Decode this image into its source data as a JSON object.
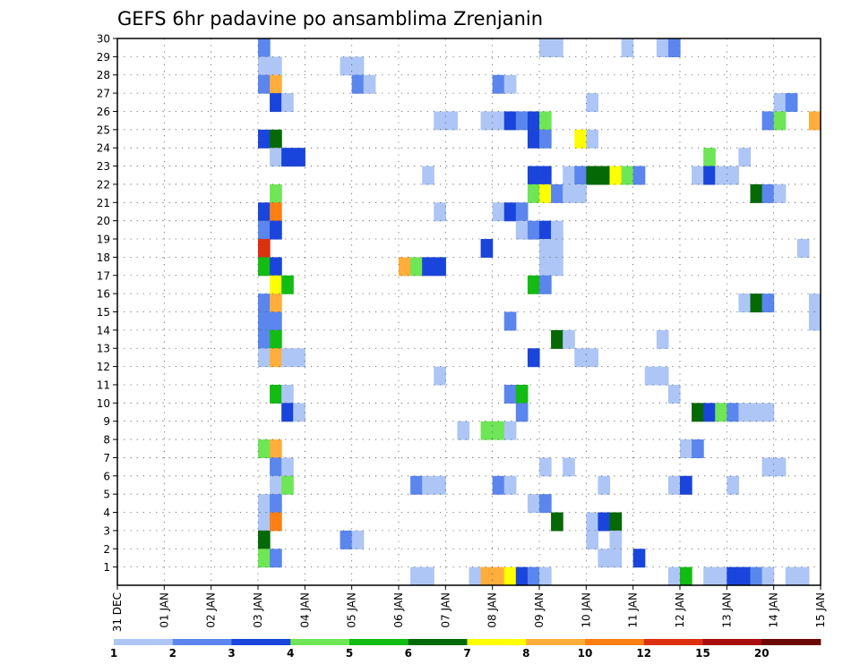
{
  "chart_data": {
    "type": "heatmap",
    "title": "GEFS 6hr padavine po ansamblima Zrenjanin",
    "xlabel": "",
    "ylabel": "",
    "x_ticks": [
      "31 DEC",
      "01 JAN",
      "02 JAN",
      "03 JAN",
      "04 JAN",
      "05 JAN",
      "06 JAN",
      "07 JAN",
      "08 JAN",
      "09 JAN",
      "10 JAN",
      "11 JAN",
      "12 JAN",
      "13 JAN",
      "14 JAN",
      "15 JAN"
    ],
    "x_unit": "days since 31 DEC, 6-hourly steps (0.25)",
    "xlim": [
      0,
      15
    ],
    "y_ticks": [
      1,
      2,
      3,
      4,
      5,
      6,
      7,
      8,
      9,
      10,
      11,
      12,
      13,
      14,
      15,
      16,
      17,
      18,
      19,
      20,
      21,
      22,
      23,
      24,
      25,
      26,
      27,
      28,
      29,
      30
    ],
    "ylim": [
      0,
      30
    ],
    "grid": true,
    "colorbar": {
      "labels": [
        "1",
        "2",
        "3",
        "4",
        "5",
        "6",
        "7",
        "8",
        "10",
        "12",
        "15",
        "20"
      ],
      "colors": [
        "#aec6f5",
        "#5a86ee",
        "#1a45dc",
        "#6ee656",
        "#12bc12",
        "#056905",
        "#ffff00",
        "#ffae3b",
        "#ff7f14",
        "#dd3010",
        "#a80c0c",
        "#6b0808"
      ]
    },
    "cells": [
      {
        "x": 3.0,
        "y": 30,
        "c": 1
      },
      {
        "x": 9.0,
        "y": 30,
        "c": 0
      },
      {
        "x": 9.25,
        "y": 30,
        "c": 0
      },
      {
        "x": 10.75,
        "y": 30,
        "c": 0
      },
      {
        "x": 11.5,
        "y": 30,
        "c": 0
      },
      {
        "x": 11.75,
        "y": 30,
        "c": 1
      },
      {
        "x": 3.0,
        "y": 29,
        "c": 0
      },
      {
        "x": 3.25,
        "y": 29,
        "c": 0
      },
      {
        "x": 4.75,
        "y": 29,
        "c": 0
      },
      {
        "x": 5.0,
        "y": 29,
        "c": 0
      },
      {
        "x": 3.0,
        "y": 28,
        "c": 1
      },
      {
        "x": 3.25,
        "y": 28,
        "c": 7
      },
      {
        "x": 5.0,
        "y": 28,
        "c": 1
      },
      {
        "x": 5.25,
        "y": 28,
        "c": 0
      },
      {
        "x": 8.0,
        "y": 28,
        "c": 1
      },
      {
        "x": 8.25,
        "y": 28,
        "c": 0
      },
      {
        "x": 3.25,
        "y": 27,
        "c": 2
      },
      {
        "x": 3.5,
        "y": 27,
        "c": 0
      },
      {
        "x": 10.0,
        "y": 27,
        "c": 0
      },
      {
        "x": 14.0,
        "y": 27,
        "c": 0
      },
      {
        "x": 14.25,
        "y": 27,
        "c": 1
      },
      {
        "x": 6.75,
        "y": 26,
        "c": 0
      },
      {
        "x": 7.0,
        "y": 26,
        "c": 0
      },
      {
        "x": 7.75,
        "y": 26,
        "c": 0
      },
      {
        "x": 8.0,
        "y": 26,
        "c": 0
      },
      {
        "x": 8.25,
        "y": 26,
        "c": 2
      },
      {
        "x": 8.5,
        "y": 26,
        "c": 1
      },
      {
        "x": 8.75,
        "y": 26,
        "c": 2
      },
      {
        "x": 9.0,
        "y": 26,
        "c": 3
      },
      {
        "x": 13.75,
        "y": 26,
        "c": 1
      },
      {
        "x": 14.0,
        "y": 26,
        "c": 3
      },
      {
        "x": 14.75,
        "y": 26,
        "c": 7
      },
      {
        "x": 3.0,
        "y": 25,
        "c": 2
      },
      {
        "x": 3.25,
        "y": 25,
        "c": 5
      },
      {
        "x": 8.75,
        "y": 25,
        "c": 2
      },
      {
        "x": 9.0,
        "y": 25,
        "c": 1
      },
      {
        "x": 9.75,
        "y": 25,
        "c": 6
      },
      {
        "x": 10.0,
        "y": 25,
        "c": 0
      },
      {
        "x": 3.25,
        "y": 24,
        "c": 0
      },
      {
        "x": 3.5,
        "y": 24,
        "c": 2
      },
      {
        "x": 3.75,
        "y": 24,
        "c": 2
      },
      {
        "x": 12.5,
        "y": 24,
        "c": 3
      },
      {
        "x": 13.25,
        "y": 24,
        "c": 0
      },
      {
        "x": 6.5,
        "y": 23,
        "c": 0
      },
      {
        "x": 8.75,
        "y": 23,
        "c": 2
      },
      {
        "x": 9.0,
        "y": 23,
        "c": 2
      },
      {
        "x": 9.5,
        "y": 23,
        "c": 0
      },
      {
        "x": 9.75,
        "y": 23,
        "c": 1
      },
      {
        "x": 10.0,
        "y": 23,
        "c": 5
      },
      {
        "x": 10.25,
        "y": 23,
        "c": 5
      },
      {
        "x": 10.5,
        "y": 23,
        "c": 6
      },
      {
        "x": 10.75,
        "y": 23,
        "c": 3
      },
      {
        "x": 11.0,
        "y": 23,
        "c": 1
      },
      {
        "x": 12.25,
        "y": 23,
        "c": 0
      },
      {
        "x": 12.5,
        "y": 23,
        "c": 2
      },
      {
        "x": 12.75,
        "y": 23,
        "c": 0
      },
      {
        "x": 13.0,
        "y": 23,
        "c": 0
      },
      {
        "x": 3.25,
        "y": 22,
        "c": 3
      },
      {
        "x": 8.75,
        "y": 22,
        "c": 3
      },
      {
        "x": 9.0,
        "y": 22,
        "c": 6
      },
      {
        "x": 9.25,
        "y": 22,
        "c": 1
      },
      {
        "x": 9.5,
        "y": 22,
        "c": 0
      },
      {
        "x": 9.75,
        "y": 22,
        "c": 0
      },
      {
        "x": 13.5,
        "y": 22,
        "c": 5
      },
      {
        "x": 13.75,
        "y": 22,
        "c": 1
      },
      {
        "x": 14.0,
        "y": 22,
        "c": 0
      },
      {
        "x": 3.0,
        "y": 21,
        "c": 2
      },
      {
        "x": 3.25,
        "y": 21,
        "c": 8
      },
      {
        "x": 6.75,
        "y": 21,
        "c": 0
      },
      {
        "x": 8.0,
        "y": 21,
        "c": 0
      },
      {
        "x": 8.25,
        "y": 21,
        "c": 2
      },
      {
        "x": 8.5,
        "y": 21,
        "c": 1
      },
      {
        "x": 3.0,
        "y": 20,
        "c": 1
      },
      {
        "x": 3.25,
        "y": 20,
        "c": 2
      },
      {
        "x": 8.5,
        "y": 20,
        "c": 0
      },
      {
        "x": 8.75,
        "y": 20,
        "c": 1
      },
      {
        "x": 9.0,
        "y": 20,
        "c": 2
      },
      {
        "x": 9.25,
        "y": 20,
        "c": 0
      },
      {
        "x": 3.0,
        "y": 19,
        "c": 9
      },
      {
        "x": 7.75,
        "y": 19,
        "c": 2
      },
      {
        "x": 9.0,
        "y": 19,
        "c": 0
      },
      {
        "x": 9.25,
        "y": 19,
        "c": 0
      },
      {
        "x": 14.5,
        "y": 19,
        "c": 0
      },
      {
        "x": 3.0,
        "y": 18,
        "c": 4
      },
      {
        "x": 3.25,
        "y": 18,
        "c": 2
      },
      {
        "x": 6.0,
        "y": 18,
        "c": 7
      },
      {
        "x": 6.25,
        "y": 18,
        "c": 3
      },
      {
        "x": 6.5,
        "y": 18,
        "c": 2
      },
      {
        "x": 6.75,
        "y": 18,
        "c": 2
      },
      {
        "x": 9.0,
        "y": 18,
        "c": 0
      },
      {
        "x": 9.25,
        "y": 18,
        "c": 0
      },
      {
        "x": 3.25,
        "y": 17,
        "c": 6
      },
      {
        "x": 3.5,
        "y": 17,
        "c": 4
      },
      {
        "x": 8.75,
        "y": 17,
        "c": 4
      },
      {
        "x": 9.0,
        "y": 17,
        "c": 1
      },
      {
        "x": 3.0,
        "y": 16,
        "c": 1
      },
      {
        "x": 3.25,
        "y": 16,
        "c": 7
      },
      {
        "x": 13.25,
        "y": 16,
        "c": 0
      },
      {
        "x": 13.5,
        "y": 16,
        "c": 5
      },
      {
        "x": 13.75,
        "y": 16,
        "c": 1
      },
      {
        "x": 14.75,
        "y": 16,
        "c": 0
      },
      {
        "x": 3.0,
        "y": 15,
        "c": 1
      },
      {
        "x": 3.25,
        "y": 15,
        "c": 1
      },
      {
        "x": 8.25,
        "y": 15,
        "c": 1
      },
      {
        "x": 14.75,
        "y": 15,
        "c": 0
      },
      {
        "x": 3.0,
        "y": 14,
        "c": 1
      },
      {
        "x": 3.25,
        "y": 14,
        "c": 4
      },
      {
        "x": 9.25,
        "y": 14,
        "c": 5
      },
      {
        "x": 9.5,
        "y": 14,
        "c": 0
      },
      {
        "x": 11.5,
        "y": 14,
        "c": 0
      },
      {
        "x": 3.0,
        "y": 13,
        "c": 0
      },
      {
        "x": 3.25,
        "y": 13,
        "c": 7
      },
      {
        "x": 3.5,
        "y": 13,
        "c": 0
      },
      {
        "x": 3.75,
        "y": 13,
        "c": 0
      },
      {
        "x": 8.75,
        "y": 13,
        "c": 2
      },
      {
        "x": 9.75,
        "y": 13,
        "c": 0
      },
      {
        "x": 10.0,
        "y": 13,
        "c": 0
      },
      {
        "x": 6.75,
        "y": 12,
        "c": 0
      },
      {
        "x": 11.25,
        "y": 12,
        "c": 0
      },
      {
        "x": 11.5,
        "y": 12,
        "c": 0
      },
      {
        "x": 3.25,
        "y": 11,
        "c": 4
      },
      {
        "x": 3.5,
        "y": 11,
        "c": 0
      },
      {
        "x": 8.25,
        "y": 11,
        "c": 1
      },
      {
        "x": 8.5,
        "y": 11,
        "c": 4
      },
      {
        "x": 11.75,
        "y": 11,
        "c": 0
      },
      {
        "x": 3.5,
        "y": 10,
        "c": 2
      },
      {
        "x": 3.75,
        "y": 10,
        "c": 0
      },
      {
        "x": 8.5,
        "y": 10,
        "c": 1
      },
      {
        "x": 12.25,
        "y": 10,
        "c": 5
      },
      {
        "x": 12.5,
        "y": 10,
        "c": 2
      },
      {
        "x": 12.75,
        "y": 10,
        "c": 3
      },
      {
        "x": 13.0,
        "y": 10,
        "c": 1
      },
      {
        "x": 13.25,
        "y": 10,
        "c": 0
      },
      {
        "x": 13.5,
        "y": 10,
        "c": 0
      },
      {
        "x": 13.75,
        "y": 10,
        "c": 0
      },
      {
        "x": 7.25,
        "y": 9,
        "c": 0
      },
      {
        "x": 7.75,
        "y": 9,
        "c": 3
      },
      {
        "x": 8.0,
        "y": 9,
        "c": 3
      },
      {
        "x": 8.25,
        "y": 9,
        "c": 0
      },
      {
        "x": 3.0,
        "y": 8,
        "c": 3
      },
      {
        "x": 3.25,
        "y": 8,
        "c": 7
      },
      {
        "x": 12.0,
        "y": 8,
        "c": 0
      },
      {
        "x": 12.25,
        "y": 8,
        "c": 1
      },
      {
        "x": 3.25,
        "y": 7,
        "c": 1
      },
      {
        "x": 3.5,
        "y": 7,
        "c": 0
      },
      {
        "x": 9.0,
        "y": 7,
        "c": 0
      },
      {
        "x": 9.5,
        "y": 7,
        "c": 0
      },
      {
        "x": 13.75,
        "y": 7,
        "c": 0
      },
      {
        "x": 14.0,
        "y": 7,
        "c": 0
      },
      {
        "x": 3.25,
        "y": 6,
        "c": 0
      },
      {
        "x": 3.5,
        "y": 6,
        "c": 3
      },
      {
        "x": 6.25,
        "y": 6,
        "c": 1
      },
      {
        "x": 6.5,
        "y": 6,
        "c": 0
      },
      {
        "x": 6.75,
        "y": 6,
        "c": 0
      },
      {
        "x": 8.0,
        "y": 6,
        "c": 1
      },
      {
        "x": 8.25,
        "y": 6,
        "c": 0
      },
      {
        "x": 10.25,
        "y": 6,
        "c": 0
      },
      {
        "x": 11.75,
        "y": 6,
        "c": 0
      },
      {
        "x": 12.0,
        "y": 6,
        "c": 2
      },
      {
        "x": 13.0,
        "y": 6,
        "c": 0
      },
      {
        "x": 3.0,
        "y": 5,
        "c": 0
      },
      {
        "x": 3.25,
        "y": 5,
        "c": 1
      },
      {
        "x": 8.75,
        "y": 5,
        "c": 0
      },
      {
        "x": 9.0,
        "y": 5,
        "c": 1
      },
      {
        "x": 3.0,
        "y": 4,
        "c": 0
      },
      {
        "x": 3.25,
        "y": 4,
        "c": 8
      },
      {
        "x": 9.25,
        "y": 4,
        "c": 5
      },
      {
        "x": 10.0,
        "y": 4,
        "c": 0
      },
      {
        "x": 10.25,
        "y": 4,
        "c": 2
      },
      {
        "x": 10.5,
        "y": 4,
        "c": 5
      },
      {
        "x": 3.0,
        "y": 3,
        "c": 5
      },
      {
        "x": 4.75,
        "y": 3,
        "c": 1
      },
      {
        "x": 5.0,
        "y": 3,
        "c": 0
      },
      {
        "x": 10.0,
        "y": 3,
        "c": 0
      },
      {
        "x": 10.5,
        "y": 3,
        "c": 0
      },
      {
        "x": 3.0,
        "y": 2,
        "c": 3
      },
      {
        "x": 3.25,
        "y": 2,
        "c": 1
      },
      {
        "x": 10.25,
        "y": 2,
        "c": 0
      },
      {
        "x": 10.5,
        "y": 2,
        "c": 0
      },
      {
        "x": 11.0,
        "y": 2,
        "c": 2
      },
      {
        "x": 6.25,
        "y": 1,
        "c": 0
      },
      {
        "x": 6.5,
        "y": 1,
        "c": 0
      },
      {
        "x": 7.5,
        "y": 1,
        "c": 0
      },
      {
        "x": 7.75,
        "y": 1,
        "c": 7
      },
      {
        "x": 8.0,
        "y": 1,
        "c": 7
      },
      {
        "x": 8.25,
        "y": 1,
        "c": 6
      },
      {
        "x": 8.5,
        "y": 1,
        "c": 2
      },
      {
        "x": 8.75,
        "y": 1,
        "c": 1
      },
      {
        "x": 9.0,
        "y": 1,
        "c": 0
      },
      {
        "x": 11.75,
        "y": 1,
        "c": 0
      },
      {
        "x": 12.0,
        "y": 1,
        "c": 4
      },
      {
        "x": 12.5,
        "y": 1,
        "c": 0
      },
      {
        "x": 12.75,
        "y": 1,
        "c": 0
      },
      {
        "x": 13.0,
        "y": 1,
        "c": 2
      },
      {
        "x": 13.25,
        "y": 1,
        "c": 2
      },
      {
        "x": 13.5,
        "y": 1,
        "c": 1
      },
      {
        "x": 13.75,
        "y": 1,
        "c": 0
      },
      {
        "x": 14.25,
        "y": 1,
        "c": 0
      },
      {
        "x": 14.5,
        "y": 1,
        "c": 0
      }
    ]
  }
}
